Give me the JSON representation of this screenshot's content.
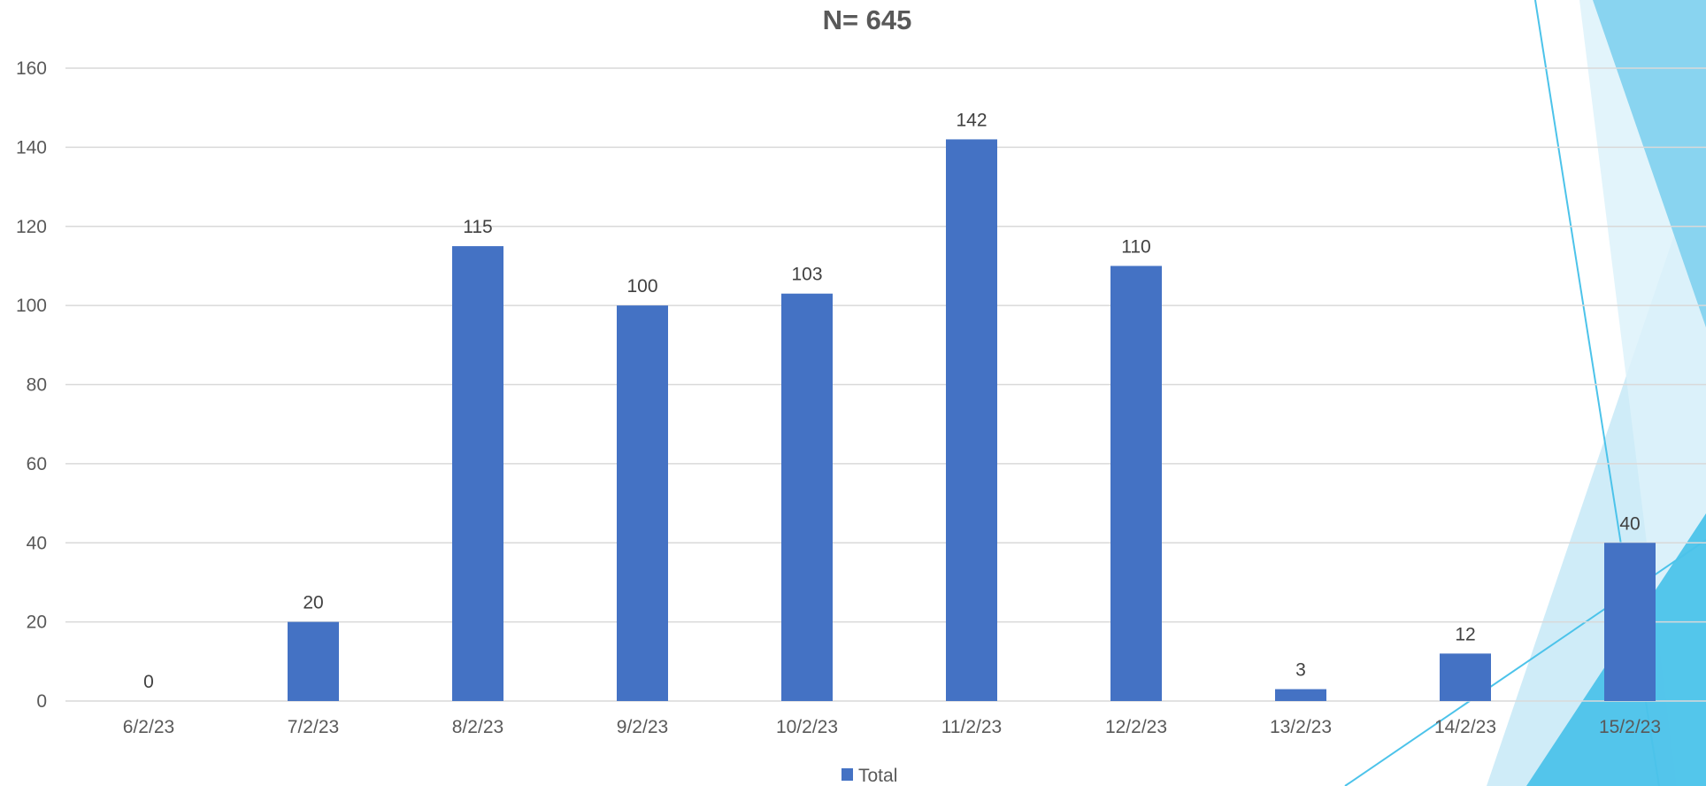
{
  "chart_data": {
    "type": "bar",
    "title": "N= 645",
    "categories": [
      "6/2/23",
      "7/2/23",
      "8/2/23",
      "9/2/23",
      "10/2/23",
      "11/2/23",
      "12/2/23",
      "13/2/23",
      "14/2/23",
      "15/2/23"
    ],
    "series": [
      {
        "name": "Total",
        "values": [
          0,
          20,
          115,
          100,
          103,
          142,
          110,
          3,
          12,
          40
        ],
        "color": "#4472C4"
      }
    ],
    "ylim": [
      0,
      160
    ],
    "yticks": [
      0,
      20,
      40,
      60,
      80,
      100,
      120,
      140,
      160
    ],
    "grid": true,
    "data_labels": true,
    "legend_position": "bottom"
  },
  "colors": {
    "bar": "#4472C4",
    "grid": "#D9D9D9",
    "decor_light": "#BFE6F5",
    "decor_mid": "#7FD0EE",
    "decor_dark": "#4CC3EA"
  }
}
